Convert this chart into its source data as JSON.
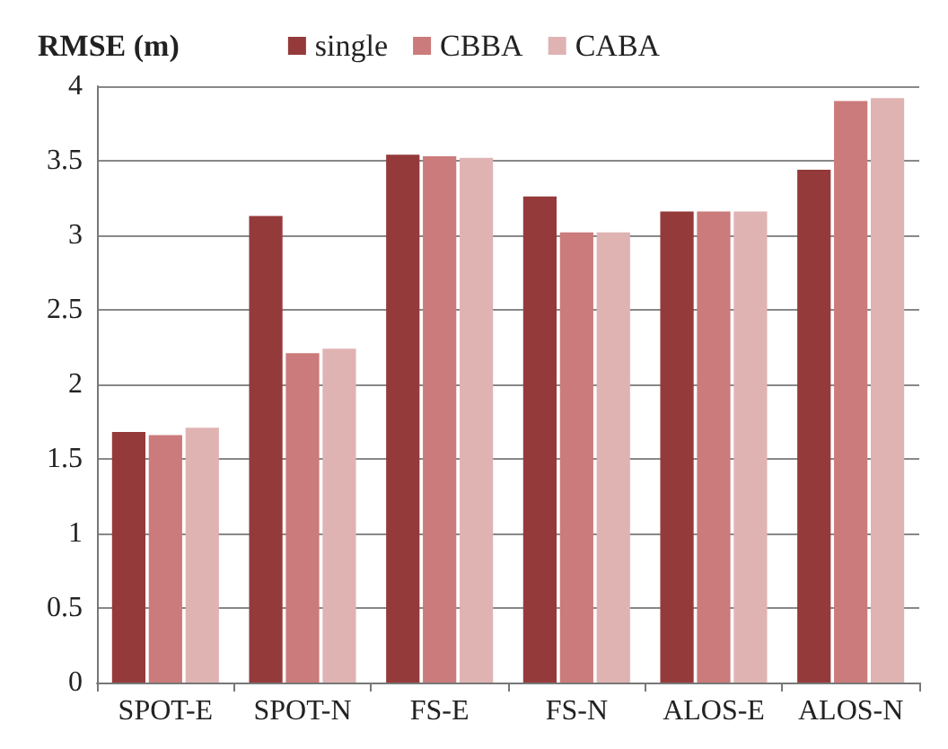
{
  "chart_data": {
    "type": "bar",
    "ylabel": "RMSE (m)",
    "categories": [
      "SPOT-E",
      "SPOT-N",
      "FS-E",
      "FS-N",
      "ALOS-E",
      "ALOS-N"
    ],
    "series": [
      {
        "name": "single",
        "color": "#953a3b",
        "values": [
          1.68,
          3.13,
          3.54,
          3.26,
          3.16,
          3.44
        ]
      },
      {
        "name": "CBBA",
        "color": "#cb7b7b",
        "values": [
          1.66,
          2.21,
          3.53,
          3.02,
          3.16,
          3.9
        ]
      },
      {
        "name": "CABA",
        "color": "#e0b3b3",
        "values": [
          1.71,
          2.24,
          3.52,
          3.02,
          3.16,
          3.92
        ]
      }
    ],
    "ylim": [
      0,
      4
    ],
    "yticks": [
      0,
      0.5,
      1,
      1.5,
      2,
      2.5,
      3,
      3.5,
      4
    ],
    "grid": "y",
    "legend": "top"
  }
}
